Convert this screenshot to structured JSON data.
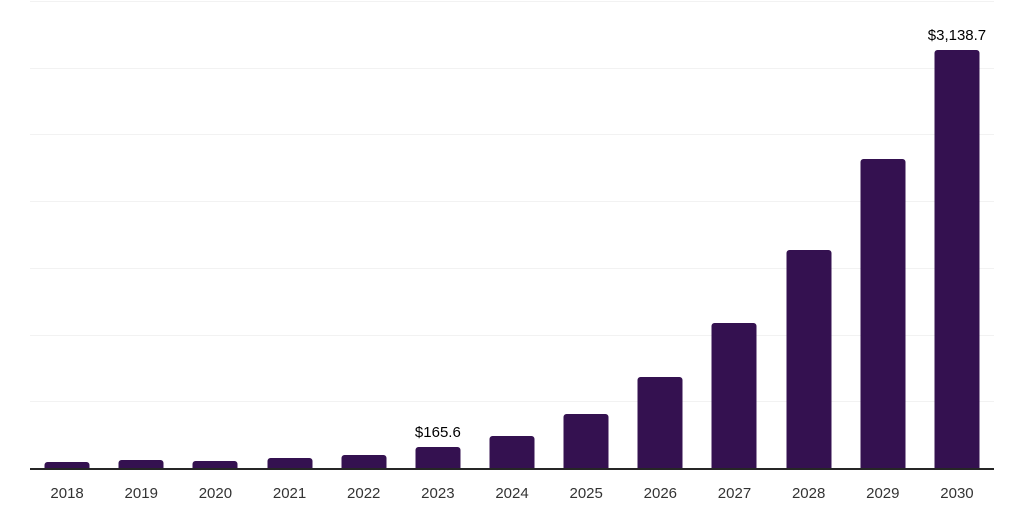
{
  "chart_data": {
    "type": "bar",
    "title": "",
    "xlabel": "",
    "ylabel": "",
    "categories": [
      "2018",
      "2019",
      "2020",
      "2021",
      "2022",
      "2023",
      "2024",
      "2025",
      "2026",
      "2027",
      "2028",
      "2029",
      "2030"
    ],
    "values": [
      52,
      66,
      57,
      80,
      107,
      165.6,
      250,
      415,
      686,
      1092,
      1640,
      2325,
      3138.7
    ],
    "bar_labels": [
      "",
      "",
      "",
      "",
      "",
      "$165.6",
      "",
      "",
      "",
      "",
      "",
      "",
      "$3,138.7"
    ],
    "ylim": [
      0,
      3500
    ],
    "grid_step": 500,
    "grid": "on",
    "y_tick_labels_visible": false,
    "legend": "none",
    "colors": {
      "bar": "#341150",
      "gridline": "#f2f2f2",
      "axis_line": "#262626",
      "tick_label": "#333333",
      "value_label": "#000000",
      "background": "#ffffff"
    }
  }
}
